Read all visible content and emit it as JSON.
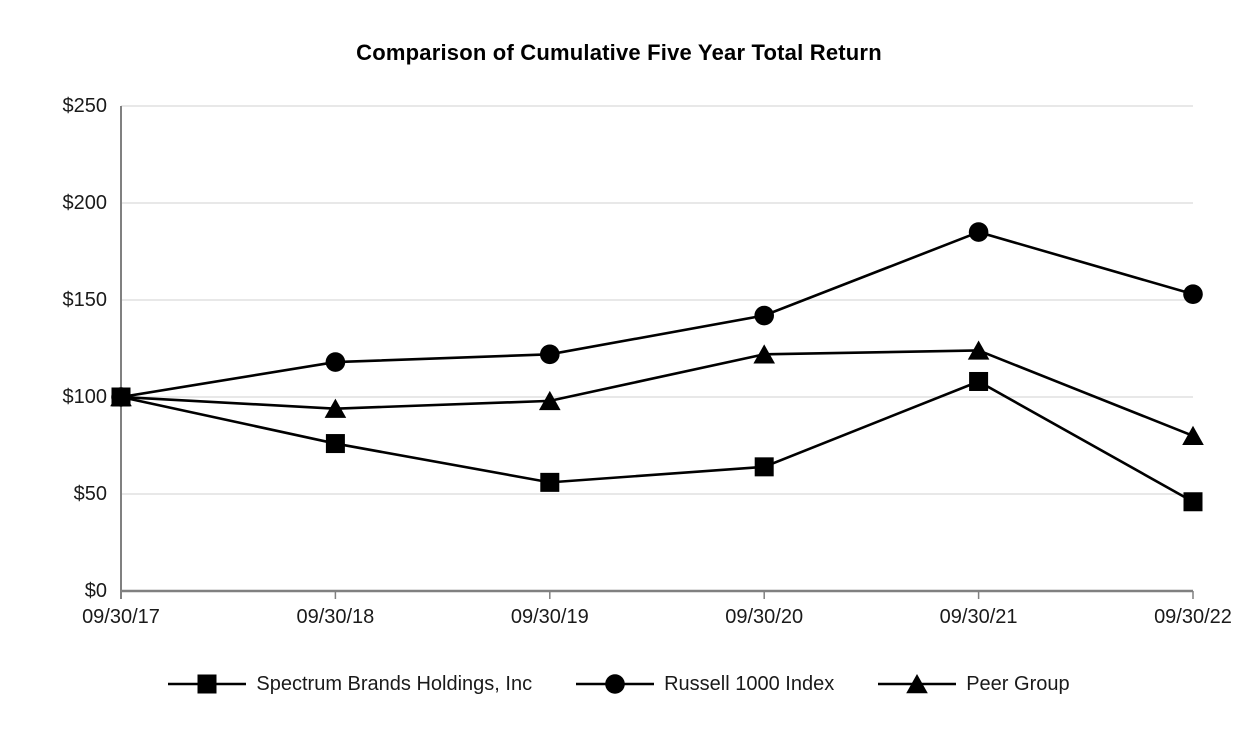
{
  "title": "Comparison of Cumulative Five Year Total Return",
  "chart_data": {
    "type": "line",
    "title": "Comparison of Cumulative Five Year Total Return",
    "x_labels": [
      "09/30/17",
      "09/30/18",
      "09/30/19",
      "09/30/20",
      "09/30/21",
      "09/30/22"
    ],
    "series": [
      {
        "name": "Spectrum Brands Holdings, Inc",
        "marker": "square",
        "values": [
          100,
          76,
          56,
          64,
          108,
          46
        ]
      },
      {
        "name": "Russell 1000 Index",
        "marker": "circle",
        "values": [
          100,
          118,
          122,
          142,
          185,
          153
        ]
      },
      {
        "name": "Peer Group",
        "marker": "triangle",
        "values": [
          100,
          94,
          98,
          122,
          124,
          80
        ]
      }
    ],
    "ylim": [
      0,
      250
    ],
    "yticks": [
      0,
      50,
      100,
      150,
      200,
      250
    ],
    "ytick_labels": [
      "$0",
      "$50",
      "$100",
      "$150",
      "$200",
      "$250"
    ],
    "grid": "horizontal",
    "legend_position": "bottom",
    "colors": {
      "series": "#000000",
      "grid": "#d9d9d9",
      "axis": "#808080",
      "text": "#1a1a1a"
    }
  }
}
